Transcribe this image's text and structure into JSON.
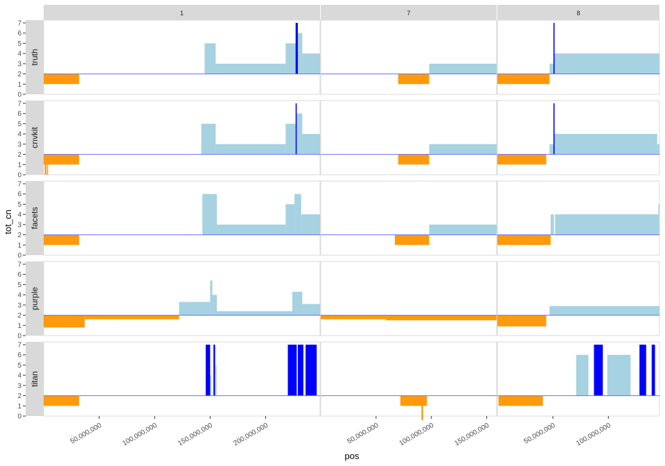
{
  "chart_data": {
    "type": "bar",
    "xlabel": "pos",
    "ylabel": "tot_cn",
    "ylim": [
      0,
      7
    ],
    "y_ticks": [
      "0",
      "1",
      "2",
      "3",
      "4",
      "5",
      "6",
      "7"
    ],
    "baseline_cn": 2,
    "colors": {
      "gain": "#a6d2e2",
      "loss": "#ff9a0c",
      "focal": "#0000ff",
      "baseline": "#6b6bff",
      "strip": "#d9d9d9",
      "panel_bg": "#ffffff",
      "panel_border": "#d9d9d9"
    },
    "columns": [
      {
        "label": "1",
        "xlim": [
          0,
          249000000
        ],
        "x_ticks": [
          {
            "value": 50000000,
            "label": "50,000,000"
          },
          {
            "value": 100000000,
            "label": "100,000,000"
          },
          {
            "value": 150000000,
            "label": "150,000,000"
          },
          {
            "value": 200000000,
            "label": "200,000,000"
          }
        ]
      },
      {
        "label": "7",
        "xlim": [
          0,
          159000000
        ],
        "x_ticks": [
          {
            "value": 50000000,
            "label": "50,000,000"
          },
          {
            "value": 100000000,
            "label": "100,000,000"
          },
          {
            "value": 150000000,
            "label": "150,000,000"
          }
        ]
      },
      {
        "label": "8",
        "xlim": [
          0,
          146000000
        ],
        "x_ticks": [
          {
            "value": 50000000,
            "label": "50,000,000"
          },
          {
            "value": 100000000,
            "label": "100,000,000"
          }
        ]
      }
    ],
    "rows": [
      {
        "label": "truth",
        "segments": [
          [
            {
              "start": 0,
              "end": 32000000,
              "cn": 1,
              "kind": "loss"
            },
            {
              "start": 145000000,
              "end": 155000000,
              "cn": 5,
              "kind": "gain"
            },
            {
              "start": 155000000,
              "end": 218000000,
              "cn": 3,
              "kind": "gain"
            },
            {
              "start": 218000000,
              "end": 228000000,
              "cn": 5,
              "kind": "gain"
            },
            {
              "start": 227000000,
              "end": 229000000,
              "cn": 7,
              "kind": "focal"
            },
            {
              "start": 229000000,
              "end": 233000000,
              "cn": 6,
              "kind": "gain"
            },
            {
              "start": 233000000,
              "end": 249000000,
              "cn": 4,
              "kind": "gain"
            }
          ],
          [
            {
              "start": 70000000,
              "end": 98000000,
              "cn": 1,
              "kind": "loss"
            },
            {
              "start": 98000000,
              "end": 159000000,
              "cn": 3,
              "kind": "gain"
            }
          ],
          [
            {
              "start": 0,
              "end": 47000000,
              "cn": 1,
              "kind": "loss"
            },
            {
              "start": 47000000,
              "end": 51000000,
              "cn": 3,
              "kind": "gain"
            },
            {
              "start": 51000000,
              "end": 146000000,
              "cn": 4,
              "kind": "gain"
            },
            {
              "start": 50500000,
              "end": 51500000,
              "cn": 7,
              "kind": "focal"
            }
          ]
        ]
      },
      {
        "label": "cnvkit",
        "segments": [
          [
            {
              "start": 0,
              "end": 32000000,
              "cn": 1,
              "kind": "loss"
            },
            {
              "start": 1000000,
              "end": 2500000,
              "cn": 0,
              "kind": "loss"
            },
            {
              "start": 3000000,
              "end": 4000000,
              "cn": 0,
              "kind": "loss"
            },
            {
              "start": 142000000,
              "end": 155000000,
              "cn": 5,
              "kind": "gain"
            },
            {
              "start": 155000000,
              "end": 218000000,
              "cn": 3,
              "kind": "gain"
            },
            {
              "start": 218000000,
              "end": 227000000,
              "cn": 5,
              "kind": "gain"
            },
            {
              "start": 227000000,
              "end": 228000000,
              "cn": 7,
              "kind": "focal"
            },
            {
              "start": 228000000,
              "end": 233000000,
              "cn": 6,
              "kind": "gain"
            },
            {
              "start": 233000000,
              "end": 249000000,
              "cn": 4,
              "kind": "gain"
            }
          ],
          [
            {
              "start": 70000000,
              "end": 98000000,
              "cn": 1,
              "kind": "loss"
            },
            {
              "start": 98000000,
              "end": 159000000,
              "cn": 3,
              "kind": "gain"
            }
          ],
          [
            {
              "start": 0,
              "end": 44000000,
              "cn": 1,
              "kind": "loss"
            },
            {
              "start": 47000000,
              "end": 51000000,
              "cn": 3,
              "kind": "gain"
            },
            {
              "start": 51000000,
              "end": 144000000,
              "cn": 4,
              "kind": "gain"
            },
            {
              "start": 144000000,
              "end": 146000000,
              "cn": 3,
              "kind": "gain"
            },
            {
              "start": 50500000,
              "end": 51500000,
              "cn": 7,
              "kind": "focal"
            }
          ]
        ]
      },
      {
        "label": "facets",
        "segments": [
          [
            {
              "start": 0,
              "end": 32000000,
              "cn": 1,
              "kind": "loss"
            },
            {
              "start": 143000000,
              "end": 156000000,
              "cn": 6,
              "kind": "gain"
            },
            {
              "start": 156000000,
              "end": 218000000,
              "cn": 3,
              "kind": "gain"
            },
            {
              "start": 218000000,
              "end": 226000000,
              "cn": 5,
              "kind": "gain"
            },
            {
              "start": 226000000,
              "end": 232000000,
              "cn": 6,
              "kind": "gain"
            },
            {
              "start": 232000000,
              "end": 249000000,
              "cn": 4,
              "kind": "gain"
            }
          ],
          [
            {
              "start": 67000000,
              "end": 98000000,
              "cn": 1,
              "kind": "loss"
            },
            {
              "start": 98000000,
              "end": 159000000,
              "cn": 3,
              "kind": "gain"
            }
          ],
          [
            {
              "start": 0,
              "end": 48000000,
              "cn": 1,
              "kind": "loss"
            },
            {
              "start": 48000000,
              "end": 51000000,
              "cn": 4,
              "kind": "gain"
            },
            {
              "start": 52000000,
              "end": 145000000,
              "cn": 4,
              "kind": "gain"
            },
            {
              "start": 145000000,
              "end": 146000000,
              "cn": 5,
              "kind": "gain"
            }
          ]
        ]
      },
      {
        "label": "purple",
        "segments": [
          [
            {
              "start": 0,
              "end": 37000000,
              "cn": 0.8,
              "kind": "loss"
            },
            {
              "start": 37000000,
              "end": 122000000,
              "cn": 1.6,
              "kind": "loss"
            },
            {
              "start": 122000000,
              "end": 150000000,
              "cn": 3.3,
              "kind": "gain"
            },
            {
              "start": 150000000,
              "end": 152000000,
              "cn": 5.4,
              "kind": "gain"
            },
            {
              "start": 152000000,
              "end": 156000000,
              "cn": 4,
              "kind": "gain"
            },
            {
              "start": 156000000,
              "end": 224000000,
              "cn": 2.4,
              "kind": "gain"
            },
            {
              "start": 224000000,
              "end": 233000000,
              "cn": 4.3,
              "kind": "gain"
            },
            {
              "start": 233000000,
              "end": 249000000,
              "cn": 3.1,
              "kind": "gain"
            }
          ],
          [
            {
              "start": 0,
              "end": 59000000,
              "cn": 1.6,
              "kind": "loss"
            },
            {
              "start": 59000000,
              "end": 159000000,
              "cn": 1.5,
              "kind": "loss"
            }
          ],
          [
            {
              "start": 0,
              "end": 44000000,
              "cn": 0.9,
              "kind": "loss"
            },
            {
              "start": 47000000,
              "end": 146000000,
              "cn": 2.9,
              "kind": "gain"
            }
          ]
        ]
      },
      {
        "label": "titan",
        "segments": [
          [
            {
              "start": 0,
              "end": 32000000,
              "cn": 1,
              "kind": "loss"
            },
            {
              "start": 146000000,
              "end": 150000000,
              "cn": 7,
              "kind": "focal"
            },
            {
              "start": 150000000,
              "end": 151000000,
              "cn": 4,
              "kind": "gain"
            },
            {
              "start": 153000000,
              "end": 154500000,
              "cn": 7,
              "kind": "focal"
            },
            {
              "start": 155000000,
              "end": 155800000,
              "cn": 5,
              "kind": "gain"
            },
            {
              "start": 220000000,
              "end": 228000000,
              "cn": 7,
              "kind": "focal"
            },
            {
              "start": 229000000,
              "end": 234000000,
              "cn": 7,
              "kind": "focal"
            },
            {
              "start": 236000000,
              "end": 246000000,
              "cn": 7,
              "kind": "focal"
            }
          ],
          [
            {
              "start": 72000000,
              "end": 96000000,
              "cn": 1,
              "kind": "loss"
            },
            {
              "start": 91000000,
              "end": 92500000,
              "cn": -0.4,
              "kind": "loss"
            }
          ],
          [
            {
              "start": 1000000,
              "end": 41000000,
              "cn": 1,
              "kind": "loss"
            },
            {
              "start": 71000000,
              "end": 82000000,
              "cn": 6,
              "kind": "gain"
            },
            {
              "start": 87000000,
              "end": 95000000,
              "cn": 7,
              "kind": "focal"
            },
            {
              "start": 99000000,
              "end": 120000000,
              "cn": 6,
              "kind": "gain"
            },
            {
              "start": 128000000,
              "end": 134000000,
              "cn": 7,
              "kind": "focal"
            },
            {
              "start": 139000000,
              "end": 142000000,
              "cn": 7,
              "kind": "focal"
            }
          ]
        ]
      }
    ]
  }
}
